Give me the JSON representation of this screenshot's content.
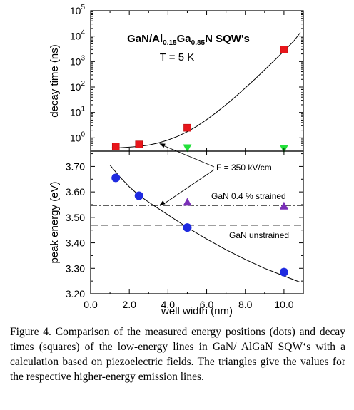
{
  "chart_data": [
    {
      "type": "scatter",
      "panel": "top",
      "ylabel": "decay time (ns)",
      "yscale": "log",
      "ylim": [
        0.3,
        100000
      ],
      "xlim": [
        0,
        11
      ],
      "yticks": [
        {
          "value": 1,
          "base": "10",
          "exp": "0"
        },
        {
          "value": 10,
          "base": "10",
          "exp": "1"
        },
        {
          "value": 100,
          "base": "10",
          "exp": "2"
        },
        {
          "value": 1000,
          "base": "10",
          "exp": "3"
        },
        {
          "value": 10000,
          "base": "10",
          "exp": "4"
        },
        {
          "value": 100000,
          "base": "10",
          "exp": "5"
        }
      ],
      "title": {
        "line1_parts": [
          "GaN/Al",
          "0.15",
          "Ga",
          "0.85",
          "N SQW's"
        ],
        "line2": "T = 5 K"
      },
      "series": [
        {
          "marker": "square",
          "color": "#e8161b",
          "x": [
            1.3,
            2.5,
            5.0,
            10.0
          ],
          "y": [
            0.45,
            0.55,
            2.5,
            3000
          ]
        },
        {
          "marker": "triangle-down",
          "color": "#22e03a",
          "x": [
            5.0,
            10.0
          ],
          "y": [
            0.4,
            0.38
          ]
        }
      ],
      "curve": {
        "x": [
          1.0,
          1.5,
          2.0,
          2.5,
          3.0,
          3.5,
          4.0,
          4.5,
          5.0,
          5.5,
          6.0,
          6.5,
          7.0,
          7.5,
          8.0,
          8.5,
          9.0,
          9.5,
          10.0,
          10.5,
          10.85
        ],
        "y": [
          0.4,
          0.41,
          0.43,
          0.46,
          0.52,
          0.63,
          0.82,
          1.15,
          1.75,
          2.9,
          5.2,
          10,
          20,
          42,
          92,
          205,
          470,
          1100,
          2600,
          6300,
          14000
        ]
      }
    },
    {
      "type": "scatter",
      "panel": "bottom",
      "xlabel": "well width (nm)",
      "ylabel": "peak energy (eV)",
      "xlim": [
        0,
        11
      ],
      "ylim": [
        3.2,
        3.76
      ],
      "xticks": [
        "0.0",
        "2.0",
        "4.0",
        "6.0",
        "8.0",
        "10.0"
      ],
      "yticks": [
        "3.20",
        "3.30",
        "3.40",
        "3.50",
        "3.60",
        "3.70"
      ],
      "series": [
        {
          "marker": "circle",
          "color": "#1f2be0",
          "x": [
            1.3,
            2.5,
            5.0,
            10.0
          ],
          "y": [
            3.655,
            3.585,
            3.46,
            3.285
          ]
        },
        {
          "marker": "triangle-up",
          "color": "#7a2fb8",
          "x": [
            5.0,
            10.0
          ],
          "y": [
            3.56,
            3.545
          ]
        }
      ],
      "curve": {
        "x": [
          1.0,
          1.5,
          2.0,
          2.5,
          3.0,
          3.5,
          4.0,
          5.0,
          6.0,
          7.0,
          8.0,
          9.0,
          10.0,
          10.85
        ],
        "y": [
          3.705,
          3.66,
          3.62,
          3.587,
          3.56,
          3.535,
          3.51,
          3.46,
          3.415,
          3.373,
          3.335,
          3.3,
          3.27,
          3.245
        ]
      },
      "reference_lines": [
        {
          "label": "GaN 0.4 % strained",
          "y": 3.547,
          "style": "dash-dot"
        },
        {
          "label": "GaN unstrained",
          "y": 3.469,
          "style": "dashed"
        }
      ]
    }
  ],
  "annotation": {
    "label": "F = 350 kV/cm"
  },
  "caption": "Figure 4. Comparison of the measured energy positions (dots) and  decay times (squares) of the low-energy lines in GaN/ AlGaN SQW‘s  with a calculation based on piezoelectric fields. The triangles  give the values for the respective higher-energy emission lines."
}
